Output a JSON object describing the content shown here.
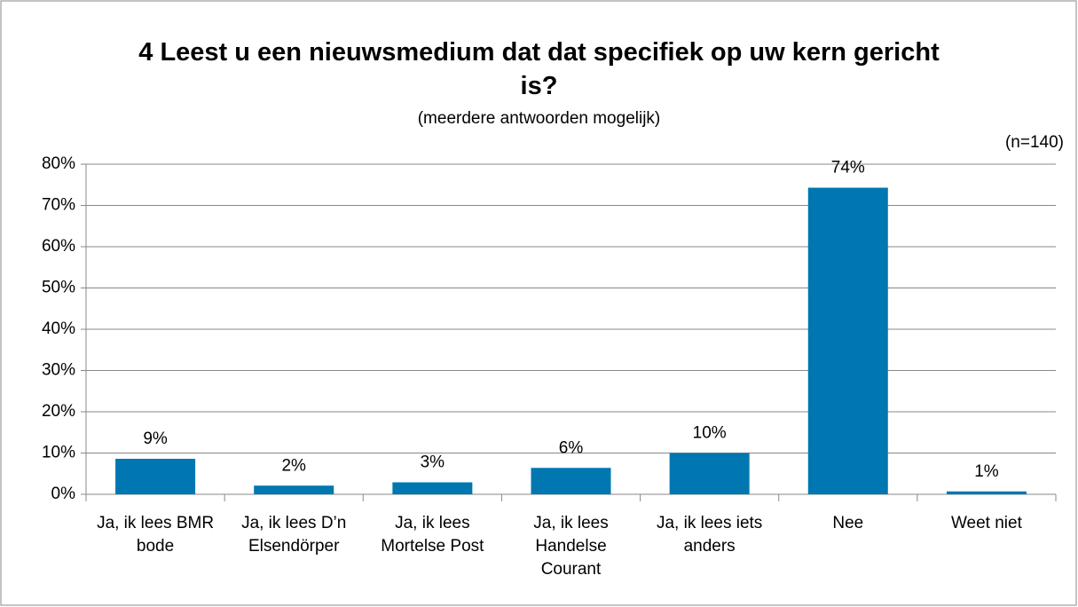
{
  "chart_data": {
    "type": "bar",
    "title": "4 Leest u een nieuwsmedium dat dat specifiek op uw kern gericht is?",
    "subtitle": "(meerdere antwoorden mogelijk)",
    "annotation": "(n=140)",
    "categories": [
      "Ja, ik lees BMR bode",
      "Ja, ik lees D’n Elsendörper",
      "Ja, ik lees Mortelse Post",
      "Ja, ik lees Handelse Courant",
      "Ja, ik lees iets anders",
      "Nee",
      "Weet niet"
    ],
    "values": [
      8.6,
      2.1,
      2.9,
      6.4,
      10.0,
      74.3,
      0.7
    ],
    "value_labels": [
      "9%",
      "2%",
      "3%",
      "6%",
      "10%",
      "74%",
      "1%"
    ],
    "color": "#0077b0",
    "ylim": [
      0,
      80
    ],
    "yticks": [
      {
        "value": 0,
        "label": "0%"
      },
      {
        "value": 10,
        "label": "10%"
      },
      {
        "value": 20,
        "label": "20%"
      },
      {
        "value": 30,
        "label": "30%"
      },
      {
        "value": 40,
        "label": "40%"
      },
      {
        "value": 50,
        "label": "50%"
      },
      {
        "value": 60,
        "label": "60%"
      },
      {
        "value": 70,
        "label": "70%"
      },
      {
        "value": 80,
        "label": "80%"
      }
    ],
    "grid": true
  }
}
